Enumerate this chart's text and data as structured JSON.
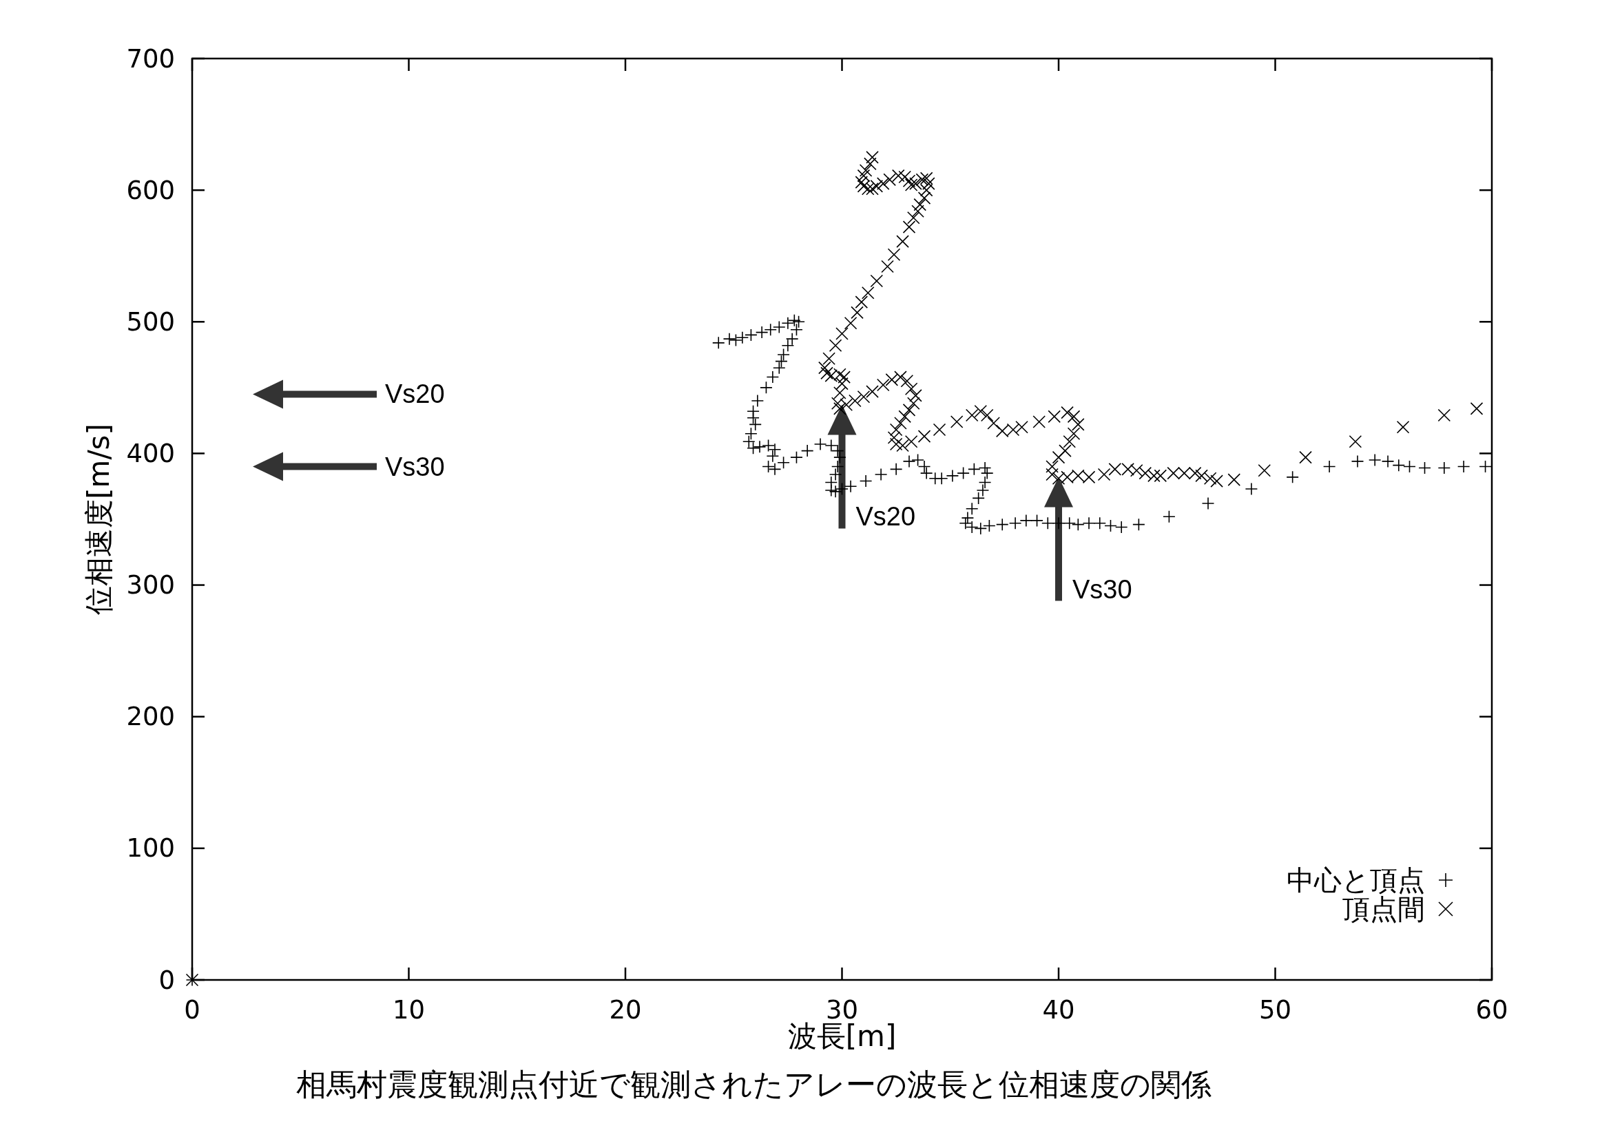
{
  "chart_data": {
    "type": "scatter",
    "title": "相馬村震度観測点付近で観測されたアレーの波長と位相速度の関係",
    "xlabel": "波長[m]",
    "ylabel": "位相速度[m/s]",
    "xlim": [
      0,
      60
    ],
    "ylim": [
      0,
      700
    ],
    "xticks": [
      0,
      10,
      20,
      30,
      40,
      50,
      60
    ],
    "yticks": [
      0,
      100,
      200,
      300,
      400,
      500,
      600,
      700
    ],
    "legend": "bottom right",
    "series": [
      {
        "name": "中心と頂点",
        "color": "#000000",
        "marker": "plus",
        "x": [
          0,
          24.3,
          24.8,
          25.1,
          25.4,
          25.8,
          26.3,
          26.7,
          27.1,
          27.5,
          27.8,
          28.0,
          27.9,
          27.7,
          27.5,
          27.3,
          27.2,
          27.1,
          26.8,
          26.5,
          26.1,
          25.9,
          25.9,
          26.0,
          25.8,
          25.7,
          25.9,
          26.2,
          26.6,
          26.9,
          26.8,
          26.6,
          26.9,
          27.3,
          27.9,
          28.4,
          29.0,
          29.5,
          29.8,
          29.9,
          29.8,
          29.7,
          29.5,
          29.5,
          29.7,
          30.0,
          30.4,
          31.1,
          31.8,
          32.5,
          33.1,
          33.5,
          33.8,
          33.9,
          34.3,
          34.6,
          35.1,
          35.6,
          36.1,
          36.6,
          36.7,
          36.6,
          36.5,
          36.3,
          36.0,
          35.8,
          35.7,
          36.0,
          36.4,
          36.8,
          37.4,
          38.0,
          38.5,
          39.0,
          39.5,
          40.0,
          40.5,
          40.9,
          41.4,
          41.9,
          42.4,
          42.9,
          43.7,
          45.1,
          46.9,
          48.9,
          50.8,
          52.5,
          53.8,
          54.6,
          55.2,
          55.7,
          56.2,
          56.9,
          57.8,
          58.7,
          59.7
        ],
        "values": [
          0,
          484,
          487,
          486,
          488,
          490,
          492,
          494,
          496,
          499,
          501,
          500,
          494,
          487,
          482,
          475,
          470,
          465,
          458,
          450,
          440,
          432,
          427,
          422,
          415,
          409,
          404,
          405,
          406,
          403,
          398,
          390,
          388,
          393,
          397,
          402,
          407,
          406,
          402,
          397,
          390,
          384,
          378,
          372,
          371,
          373,
          375,
          379,
          384,
          388,
          394,
          395,
          390,
          385,
          381,
          381,
          383,
          385,
          388,
          389,
          385,
          378,
          372,
          366,
          358,
          351,
          347,
          344,
          343,
          345,
          346,
          347,
          349,
          349,
          347,
          347,
          347,
          346,
          347,
          347,
          345,
          344,
          346,
          352,
          362,
          373,
          382,
          390,
          394,
          395,
          394,
          391,
          390,
          389,
          389,
          390,
          390
        ]
      },
      {
        "name": "頂点間",
        "color": "#000000",
        "marker": "cross",
        "x": [
          0,
          31.4,
          31.3,
          31.1,
          31.0,
          30.9,
          31.0,
          31.2,
          31.4,
          31.6,
          31.9,
          32.2,
          32.6,
          32.9,
          33.1,
          33.2,
          33.4,
          33.7,
          33.9,
          34.0,
          33.9,
          33.8,
          33.6,
          33.5,
          33.3,
          33.1,
          32.8,
          32.4,
          32.1,
          31.6,
          31.2,
          30.9,
          30.7,
          30.4,
          30.0,
          29.7,
          29.4,
          29.2,
          29.3,
          29.5,
          29.9,
          30.1,
          30.0,
          29.9,
          29.8,
          29.9,
          30.2,
          30.6,
          31.0,
          31.4,
          31.9,
          32.3,
          32.7,
          33.0,
          33.2,
          33.4,
          33.3,
          33.1,
          32.9,
          32.7,
          32.5,
          32.4,
          32.5,
          32.8,
          33.2,
          33.8,
          34.5,
          35.3,
          36.0,
          36.4,
          36.7,
          37.0,
          37.4,
          37.9,
          38.3,
          39.1,
          39.8,
          40.4,
          40.7,
          40.9,
          40.7,
          40.5,
          40.3,
          40.0,
          39.7,
          39.7,
          40.0,
          40.4,
          40.9,
          41.4,
          42.1,
          42.6,
          43.2,
          43.6,
          44.0,
          44.4,
          44.7,
          45.3,
          45.8,
          46.3,
          46.6,
          47.0,
          47.3,
          48.1,
          49.5,
          51.4,
          53.7,
          55.9,
          57.8,
          59.3
        ],
        "values": [
          0,
          625,
          620,
          615,
          611,
          606,
          603,
          601,
          601,
          603,
          605,
          608,
          611,
          610,
          607,
          604,
          605,
          608,
          609,
          605,
          600,
          594,
          589,
          584,
          579,
          572,
          561,
          551,
          542,
          531,
          522,
          515,
          507,
          499,
          491,
          482,
          472,
          465,
          461,
          459,
          460,
          458,
          453,
          446,
          438,
          434,
          437,
          440,
          443,
          447,
          452,
          456,
          458,
          455,
          449,
          444,
          438,
          433,
          428,
          423,
          418,
          412,
          407,
          406,
          409,
          413,
          418,
          424,
          429,
          432,
          429,
          423,
          417,
          418,
          420,
          424,
          428,
          431,
          428,
          422,
          415,
          409,
          402,
          397,
          390,
          384,
          381,
          382,
          383,
          382,
          384,
          388,
          388,
          387,
          385,
          383,
          383,
          385,
          385,
          385,
          383,
          381,
          379,
          380,
          387,
          397,
          409,
          420,
          429,
          434
        ]
      }
    ],
    "ref_lines": [
      {
        "axis": "y",
        "value": 445,
        "label": "Vs20"
      },
      {
        "axis": "y",
        "value": 390,
        "label": "Vs30"
      },
      {
        "axis": "x",
        "value": 30,
        "label": "Vs20"
      },
      {
        "axis": "x",
        "value": 40,
        "label": "Vs30"
      }
    ]
  }
}
